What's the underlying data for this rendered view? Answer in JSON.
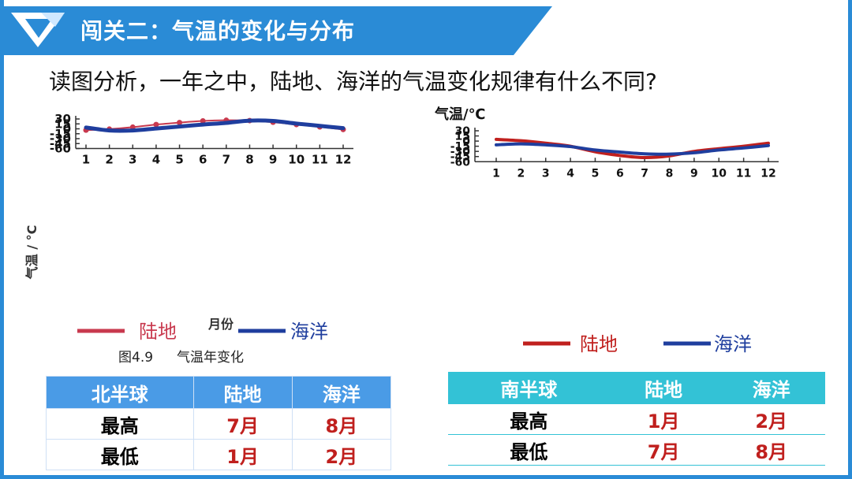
{
  "header": {
    "title": "闯关二：气温的变化与分布"
  },
  "question": "读图分析，一年之中，陆地、海洋的气温变化规律有什么不同?",
  "chart_data": [
    {
      "type": "line",
      "title": "气温年变化",
      "caption": "图4.9",
      "caption_title": "气温年变化",
      "xlabel": "月份",
      "ylabel": "气温 / °C",
      "x": [
        1,
        2,
        3,
        4,
        5,
        6,
        7,
        8,
        9,
        10,
        11,
        12
      ],
      "ylim": [
        -60,
        30
      ],
      "yticks": [
        30,
        15,
        0,
        -15,
        -30,
        -45,
        -60
      ],
      "grid": false,
      "legend": "bottom",
      "series": [
        {
          "name": "陆地",
          "color": "#c8394e",
          "markers": true,
          "values": [
            -4,
            -1,
            5,
            13,
            19,
            24,
            26,
            25,
            20,
            13,
            6,
            -2
          ]
        },
        {
          "name": "海洋",
          "color": "#1f3e9e",
          "markers": false,
          "values": [
            4,
            -5,
            -5,
            1,
            7,
            13,
            18,
            25,
            24,
            16,
            9,
            2
          ]
        }
      ]
    },
    {
      "type": "line",
      "ylabel": "气温/℃",
      "x": [
        1,
        2,
        3,
        4,
        5,
        6,
        7,
        8,
        9,
        10,
        11,
        12
      ],
      "ylim": [
        -60,
        30
      ],
      "yticks": [
        30,
        15,
        0,
        -15,
        -30,
        -45,
        -60
      ],
      "grid": false,
      "legend": "bottom",
      "series": [
        {
          "name": "陆地",
          "color": "#c0201e",
          "values": [
            5,
            1,
            -6,
            -15,
            -31,
            -42,
            -48,
            -43,
            -30,
            -22,
            -15,
            -6
          ]
        },
        {
          "name": "海洋",
          "color": "#1f3e9e",
          "values": [
            -11,
            -8,
            -11,
            -16,
            -26,
            -32,
            -37,
            -38,
            -34,
            -26,
            -20,
            -13
          ]
        }
      ]
    }
  ],
  "table_north": {
    "header": [
      "北半球",
      "陆地",
      "海洋"
    ],
    "rows": [
      [
        "最高",
        "7月",
        "8月"
      ],
      [
        "最低",
        "1月",
        "2月"
      ]
    ]
  },
  "table_south": {
    "header": [
      "南半球",
      "陆地",
      "海洋"
    ],
    "rows": [
      [
        "最高",
        "1月",
        "2月"
      ],
      [
        "最低",
        "7月",
        "8月"
      ]
    ]
  }
}
